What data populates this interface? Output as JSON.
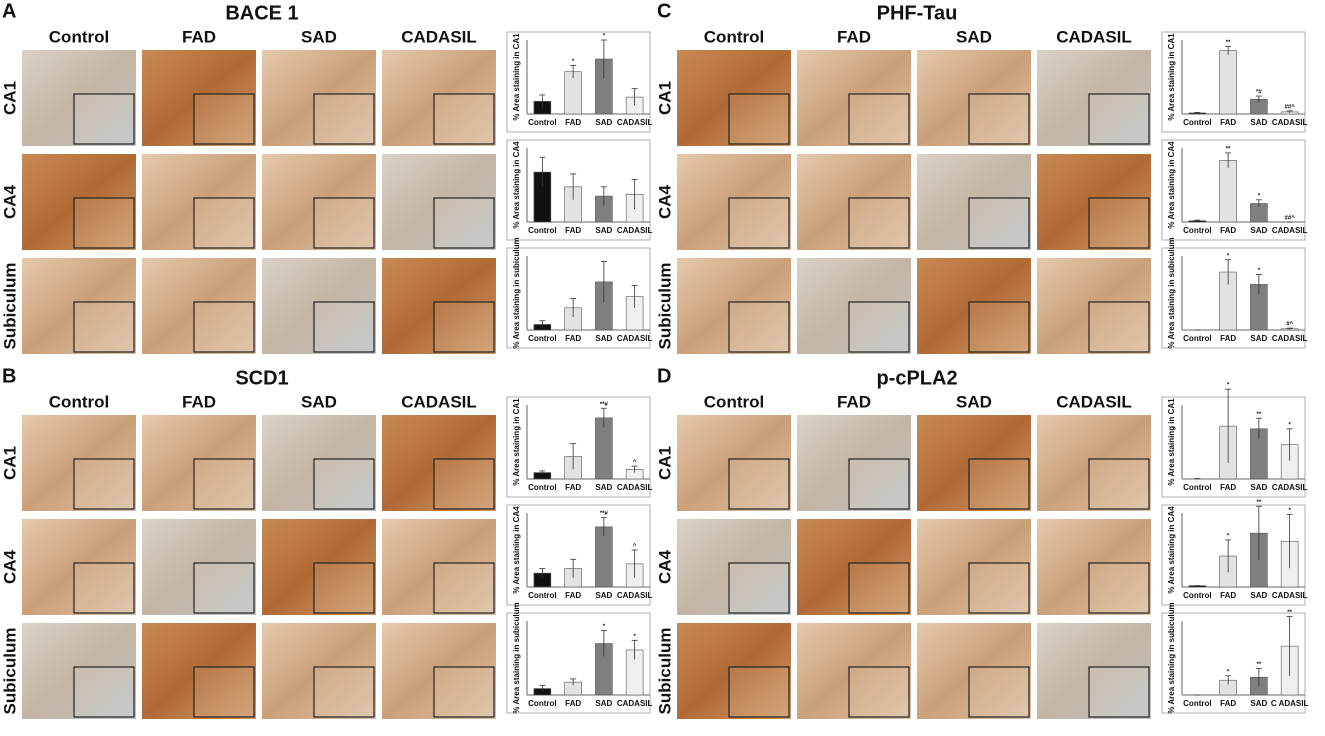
{
  "panels": [
    {
      "letter": "A",
      "title": "BACE 1",
      "columns": [
        "Control",
        "FAD",
        "SAD",
        "CADASIL"
      ],
      "rows": [
        "CA1",
        "CA4",
        "Subiculum"
      ],
      "charts": [
        {
          "type": "bar",
          "ylabel": "% Area staining in CA1",
          "categories": [
            "Control",
            "FAD",
            "SAD",
            "CADASIL"
          ],
          "values": [
            0.6,
            2.0,
            2.6,
            0.8
          ],
          "errors": [
            0.3,
            0.3,
            0.9,
            0.4
          ],
          "annotations": [
            null,
            "*",
            "*",
            null
          ],
          "ylim": [
            0,
            3.5
          ],
          "colors": [
            "#111111",
            "#e2e2e2",
            "#7f7f7f",
            "#efefef"
          ]
        },
        {
          "type": "bar",
          "ylabel": "% Area staining in CA4",
          "categories": [
            "Control",
            "FAD",
            "SAD",
            "CADASIL"
          ],
          "values": [
            27,
            19,
            14,
            15
          ],
          "errors": [
            8,
            7,
            5,
            8
          ],
          "annotations": [
            null,
            null,
            null,
            null
          ],
          "ylim": [
            0,
            40
          ],
          "colors": [
            "#111111",
            "#e2e2e2",
            "#7f7f7f",
            "#efefef"
          ]
        },
        {
          "type": "bar",
          "ylabel": "% Area staining in subiculum",
          "categories": [
            "Control",
            "FAD",
            "SAD",
            "CADASIL"
          ],
          "values": [
            3,
            12,
            26,
            18
          ],
          "errors": [
            2,
            5,
            11,
            6
          ],
          "annotations": [
            null,
            null,
            null,
            null
          ],
          "ylim": [
            0,
            40
          ],
          "colors": [
            "#111111",
            "#e2e2e2",
            "#7f7f7f",
            "#efefef"
          ]
        }
      ]
    },
    {
      "letter": "C",
      "title": "PHF-Tau",
      "columns": [
        "Control",
        "FAD",
        "SAD",
        "CADASIL"
      ],
      "rows": [
        "CA1",
        "CA4",
        "Subiculum"
      ],
      "charts": [
        {
          "type": "bar",
          "ylabel": "% Area staining in CA1",
          "categories": [
            "Control",
            "FAD",
            "SAD",
            "CADASIL"
          ],
          "values": [
            1,
            60,
            14,
            2
          ],
          "errors": [
            0.5,
            4,
            3,
            1
          ],
          "annotations": [
            null,
            "**",
            "*#",
            "##^"
          ],
          "ylim": [
            0,
            70
          ],
          "colors": [
            "#111111",
            "#e2e2e2",
            "#7f7f7f",
            "#efefef"
          ]
        },
        {
          "type": "bar",
          "ylabel": "% Area staining in CA4",
          "categories": [
            "Control",
            "FAD",
            "SAD",
            "CADASIL"
          ],
          "values": [
            1,
            50,
            15,
            0
          ],
          "errors": [
            0.5,
            6,
            3,
            0
          ],
          "annotations": [
            null,
            "**",
            "*",
            "##^"
          ],
          "ylim": [
            0,
            60
          ],
          "colors": [
            "#111111",
            "#e2e2e2",
            "#7f7f7f",
            "#efefef"
          ]
        },
        {
          "type": "bar",
          "ylabel": "% Area staining in subiculum",
          "categories": [
            "Control",
            "FAD",
            "SAD",
            "CADASIL"
          ],
          "values": [
            0,
            47,
            37,
            1
          ],
          "errors": [
            0,
            10,
            8,
            0.5
          ],
          "annotations": [
            null,
            "*",
            "*",
            "#^"
          ],
          "ylim": [
            0,
            60
          ],
          "colors": [
            "#111111",
            "#e2e2e2",
            "#7f7f7f",
            "#efefef"
          ]
        }
      ]
    },
    {
      "letter": "B",
      "title": "SCD1",
      "columns": [
        "Control",
        "FAD",
        "SAD",
        "CADASIL"
      ],
      "rows": [
        "CA1",
        "CA4",
        "Subiculum"
      ],
      "charts": [
        {
          "type": "bar",
          "ylabel": "% Area staining in CA1",
          "categories": [
            "Control",
            "FAD",
            "SAD",
            "CADASIL"
          ],
          "values": [
            2,
            7,
            19,
            3
          ],
          "errors": [
            0.5,
            4,
            3,
            1
          ],
          "annotations": [
            null,
            null,
            "**#",
            "^"
          ],
          "ylim": [
            0,
            23
          ],
          "colors": [
            "#111111",
            "#e2e2e2",
            "#7f7f7f",
            "#efefef"
          ]
        },
        {
          "type": "bar",
          "ylabel": "% Area staining in CA4",
          "categories": [
            "Control",
            "FAD",
            "SAD",
            "CADASIL"
          ],
          "values": [
            3,
            4,
            13,
            5
          ],
          "errors": [
            1,
            2,
            2,
            3
          ],
          "annotations": [
            null,
            null,
            "**#",
            "^"
          ],
          "ylim": [
            0,
            16
          ],
          "colors": [
            "#111111",
            "#e2e2e2",
            "#7f7f7f",
            "#efefef"
          ]
        },
        {
          "type": "bar",
          "ylabel": "% Area staining in subiculum",
          "categories": [
            "Control",
            "FAD",
            "SAD",
            "CADASIL"
          ],
          "values": [
            2,
            4,
            16,
            14
          ],
          "errors": [
            1,
            1,
            4,
            3
          ],
          "annotations": [
            null,
            null,
            "*",
            "*"
          ],
          "ylim": [
            0,
            23
          ],
          "colors": [
            "#111111",
            "#e2e2e2",
            "#7f7f7f",
            "#efefef"
          ]
        }
      ]
    },
    {
      "letter": "D",
      "title": "p-cPLA2",
      "columns": [
        "Control",
        "FAD",
        "SAD",
        "CADASIL"
      ],
      "rows": [
        "CA1",
        "CA4",
        "Subiculum"
      ],
      "charts": [
        {
          "type": "bar",
          "ylabel": "% Area staining in CA1",
          "categories": [
            "Control",
            "FAD",
            "SAD",
            "CADASIL"
          ],
          "values": [
            0,
            10,
            9.5,
            6.5
          ],
          "errors": [
            0.1,
            7,
            2,
            3
          ],
          "annotations": [
            null,
            "*",
            "**",
            "*"
          ],
          "ylim": [
            0,
            14
          ],
          "colors": [
            "#111111",
            "#e2e2e2",
            "#7f7f7f",
            "#efefef"
          ]
        },
        {
          "type": "bar",
          "ylabel": "% Area staining in CA4",
          "categories": [
            "Control",
            "FAD",
            "SAD",
            "CADASIL"
          ],
          "values": [
            0.1,
            2.3,
            4,
            3.4
          ],
          "errors": [
            0,
            1.2,
            2,
            2
          ],
          "annotations": [
            null,
            "*",
            "**",
            "*"
          ],
          "ylim": [
            0,
            5.5
          ],
          "colors": [
            "#111111",
            "#e2e2e2",
            "#7f7f7f",
            "#efefef"
          ]
        },
        {
          "type": "bar",
          "ylabel": "% Area staining in subiculum",
          "categories": [
            "Control",
            "FAD",
            "SAD",
            "C ADASIL"
          ],
          "values": [
            0,
            1,
            1.2,
            3.3
          ],
          "errors": [
            0,
            0.3,
            0.6,
            2
          ],
          "annotations": [
            null,
            "*",
            "**",
            "**"
          ],
          "ylim": [
            0,
            5
          ],
          "colors": [
            "#111111",
            "#e2e2e2",
            "#7f7f7f",
            "#efefef"
          ]
        }
      ]
    }
  ]
}
